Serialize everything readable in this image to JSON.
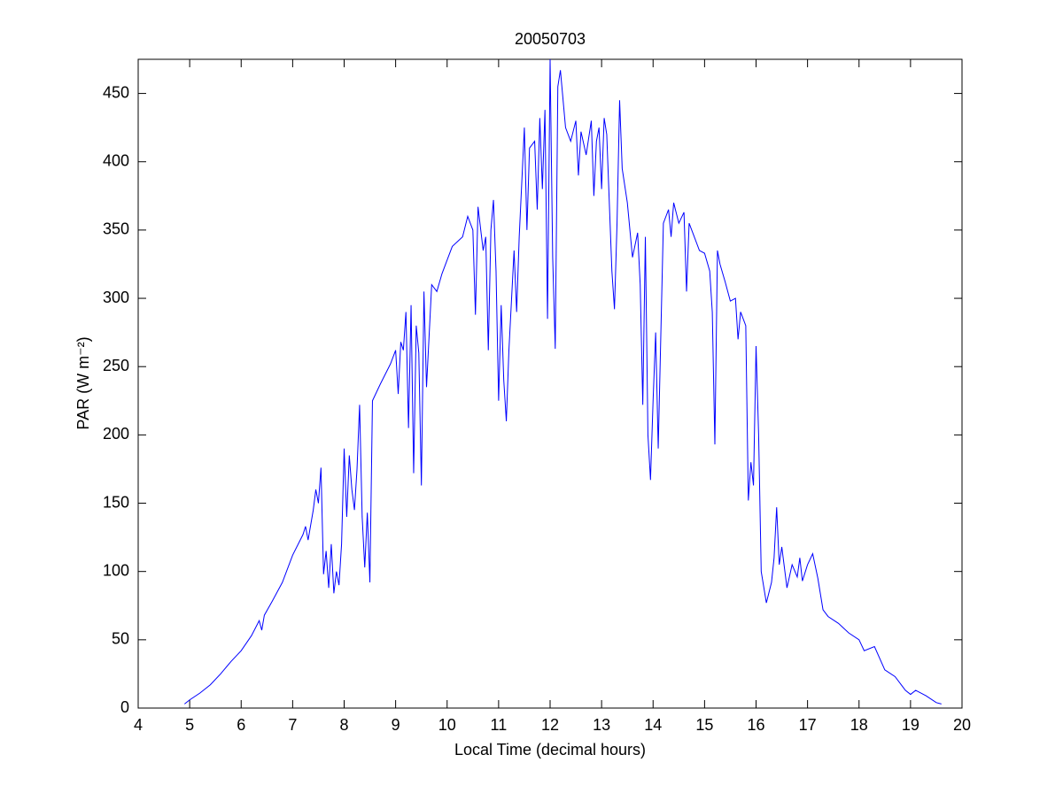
{
  "chart_data": {
    "type": "line",
    "title": "20050703",
    "x_label": "Local Time (decimal hours)",
    "y_label": "PAR (W m⁻²)",
    "color": "#0000ff",
    "x": [
      4.9,
      5.0,
      5.2,
      5.4,
      5.6,
      5.8,
      6.0,
      6.2,
      6.35,
      6.4,
      6.45,
      6.6,
      6.8,
      7.0,
      7.2,
      7.25,
      7.3,
      7.4,
      7.45,
      7.5,
      7.55,
      7.6,
      7.65,
      7.7,
      7.75,
      7.8,
      7.85,
      7.9,
      7.95,
      8.0,
      8.05,
      8.1,
      8.15,
      8.2,
      8.25,
      8.3,
      8.35,
      8.4,
      8.45,
      8.5,
      8.55,
      8.7,
      8.9,
      9.0,
      9.05,
      9.1,
      9.15,
      9.2,
      9.25,
      9.3,
      9.35,
      9.4,
      9.45,
      9.5,
      9.55,
      9.6,
      9.7,
      9.8,
      9.9,
      10.0,
      10.1,
      10.3,
      10.4,
      10.5,
      10.55,
      10.6,
      10.7,
      10.75,
      10.8,
      10.85,
      10.9,
      10.95,
      11.0,
      11.05,
      11.1,
      11.15,
      11.2,
      11.3,
      11.35,
      11.4,
      11.5,
      11.55,
      11.6,
      11.7,
      11.75,
      11.8,
      11.85,
      11.9,
      11.95,
      12.0,
      12.05,
      12.1,
      12.15,
      12.2,
      12.3,
      12.4,
      12.5,
      12.55,
      12.6,
      12.7,
      12.8,
      12.85,
      12.9,
      12.95,
      13.0,
      13.05,
      13.1,
      13.2,
      13.25,
      13.3,
      13.35,
      13.4,
      13.5,
      13.6,
      13.7,
      13.75,
      13.8,
      13.85,
      13.9,
      13.95,
      14.0,
      14.05,
      14.1,
      14.2,
      14.3,
      14.35,
      14.4,
      14.5,
      14.6,
      14.65,
      14.7,
      14.8,
      14.9,
      15.0,
      15.1,
      15.15,
      15.2,
      15.25,
      15.3,
      15.4,
      15.5,
      15.6,
      15.65,
      15.7,
      15.8,
      15.85,
      15.9,
      15.95,
      16.0,
      16.05,
      16.1,
      16.2,
      16.3,
      16.35,
      16.4,
      16.45,
      16.5,
      16.6,
      16.7,
      16.8,
      16.85,
      16.9,
      17.0,
      17.1,
      17.2,
      17.3,
      17.4,
      17.6,
      17.8,
      18.0,
      18.1,
      18.3,
      18.5,
      18.7,
      18.9,
      19.0,
      19.1,
      19.3,
      19.5,
      19.6
    ],
    "values": [
      3,
      6,
      11,
      17,
      25,
      34,
      42,
      53,
      64,
      57,
      68,
      78,
      92,
      112,
      127,
      133,
      123,
      145,
      160,
      150,
      176,
      98,
      115,
      88,
      120,
      84,
      100,
      90,
      120,
      190,
      140,
      185,
      160,
      145,
      175,
      222,
      140,
      103,
      143,
      92,
      225,
      237,
      252,
      262,
      230,
      268,
      262,
      290,
      205,
      295,
      172,
      280,
      260,
      163,
      305,
      235,
      310,
      305,
      318,
      328,
      338,
      345,
      360,
      350,
      288,
      367,
      335,
      345,
      262,
      350,
      372,
      320,
      225,
      295,
      240,
      210,
      262,
      335,
      290,
      345,
      425,
      350,
      410,
      415,
      365,
      432,
      380,
      438,
      285,
      475,
      330,
      263,
      455,
      467,
      425,
      415,
      430,
      390,
      422,
      405,
      430,
      375,
      415,
      425,
      380,
      432,
      420,
      320,
      292,
      355,
      445,
      395,
      370,
      330,
      348,
      310,
      222,
      345,
      200,
      167,
      225,
      275,
      190,
      355,
      365,
      345,
      370,
      355,
      363,
      305,
      355,
      345,
      335,
      333,
      320,
      290,
      193,
      335,
      325,
      312,
      298,
      300,
      270,
      290,
      280,
      152,
      180,
      163,
      265,
      200,
      100,
      77,
      92,
      110,
      147,
      105,
      118,
      88,
      105,
      96,
      110,
      93,
      105,
      113,
      95,
      72,
      67,
      62,
      55,
      50,
      42,
      45,
      28,
      23,
      13,
      10,
      13,
      9,
      4,
      3
    ],
    "xlim": [
      4,
      20
    ],
    "xticks": [
      4,
      5,
      6,
      7,
      8,
      9,
      10,
      11,
      12,
      13,
      14,
      15,
      16,
      17,
      18,
      19,
      20
    ],
    "ylim": [
      0,
      475
    ],
    "yticks": [
      0,
      50,
      100,
      150,
      200,
      250,
      300,
      350,
      400,
      450
    ]
  }
}
